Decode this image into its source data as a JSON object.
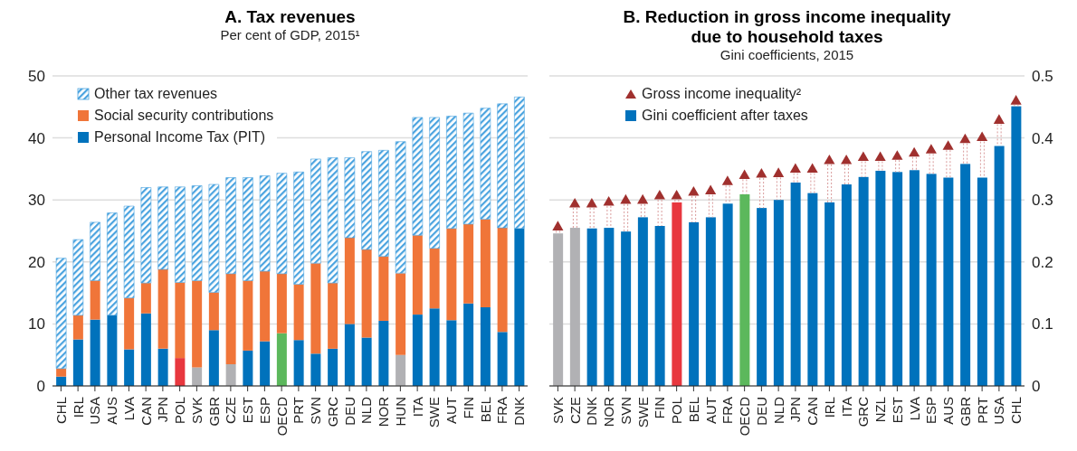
{
  "chart_data": [
    {
      "type": "bar",
      "title": "A. Tax revenues",
      "subtitle": "Per cent of GDP, 2015¹",
      "stacked": true,
      "grid": "y",
      "legend": "top left",
      "categories": [
        "CHL",
        "IRL",
        "USA",
        "AUS",
        "LVA",
        "CAN",
        "JPN",
        "POL",
        "SVK",
        "GBR",
        "CZE",
        "EST",
        "ESP",
        "OECD",
        "PRT",
        "SVN",
        "GRC",
        "DEU",
        "NLD",
        "NOR",
        "HUN",
        "ITA",
        "SWE",
        "AUT",
        "FIN",
        "BEL",
        "FRA",
        "DNK"
      ],
      "ylim": [
        0,
        50
      ],
      "yticks": [
        0,
        10,
        20,
        30,
        40,
        50
      ],
      "series": [
        {
          "name": "Personal Income Tax (PIT)",
          "color": "#0072bc",
          "values": [
            1.5,
            7.5,
            10.7,
            11.4,
            5.9,
            11.7,
            6.0,
            4.5,
            3.0,
            9.0,
            3.5,
            5.7,
            7.2,
            8.5,
            7.4,
            5.2,
            6.0,
            10.0,
            7.8,
            10.5,
            5.0,
            11.5,
            12.5,
            10.6,
            13.3,
            12.7,
            8.7,
            25.4
          ],
          "colors": [
            "#0072bc",
            "#0072bc",
            "#0072bc",
            "#0072bc",
            "#0072bc",
            "#0072bc",
            "#0072bc",
            "#e8373e",
            "#b1b1b4",
            "#0072bc",
            "#b1b1b4",
            "#0072bc",
            "#0072bc",
            "#5cb85c",
            "#0072bc",
            "#0072bc",
            "#0072bc",
            "#0072bc",
            "#0072bc",
            "#0072bc",
            "#b1b1b4",
            "#0072bc",
            "#0072bc",
            "#0072bc",
            "#0072bc",
            "#0072bc",
            "#0072bc",
            "#0072bc"
          ]
        },
        {
          "name": "Social security contributions",
          "color": "#f07539",
          "values": [
            1.3,
            3.9,
            6.3,
            0,
            8.3,
            4.9,
            12.8,
            12.2,
            14.0,
            6.1,
            14.6,
            11.3,
            11.3,
            9.6,
            9.0,
            14.6,
            10.6,
            13.9,
            14.2,
            10.4,
            13.2,
            12.8,
            9.7,
            14.8,
            12.8,
            14.2,
            16.8,
            0
          ]
        },
        {
          "name": "Other tax revenues",
          "color": "#4aa3df",
          "values": [
            17.8,
            12.2,
            9.4,
            16.5,
            14.8,
            15.4,
            13.3,
            15.4,
            15.3,
            17.4,
            15.5,
            16.6,
            15.4,
            16.2,
            18.1,
            16.8,
            20.2,
            12.9,
            15.8,
            17.1,
            21.2,
            19.0,
            21.1,
            18.1,
            17.9,
            17.9,
            20.0,
            21.2
          ]
        }
      ]
    },
    {
      "type": "bar",
      "title": "B. Reduction in gross income inequality due to household taxes",
      "subtitle": "Gini coefficients, 2015",
      "grid": "y",
      "legend": "top left",
      "marker": "triangle",
      "categories": [
        "SVK",
        "CZE",
        "DNK",
        "NOR",
        "SVN",
        "SWE",
        "FIN",
        "POL",
        "BEL",
        "AUT",
        "FRA",
        "OECD",
        "DEU",
        "NLD",
        "JPN",
        "CAN",
        "IRL",
        "ITA",
        "GRC",
        "NZL",
        "EST",
        "LVA",
        "ESP",
        "AUS",
        "GBR",
        "PRT",
        "USA",
        "CHL"
      ],
      "y2lim": [
        0,
        0.5
      ],
      "y2ticks": [
        0,
        0.1,
        0.2,
        0.3,
        0.4,
        0.5
      ],
      "series": [
        {
          "name": "Gross income inequality²",
          "type": "scatter",
          "axis": "y2",
          "color": "#a0302e",
          "values": [
            0.256,
            0.293,
            0.293,
            0.296,
            0.299,
            0.299,
            0.306,
            0.306,
            0.312,
            0.314,
            0.329,
            0.339,
            0.341,
            0.342,
            0.349,
            0.349,
            0.363,
            0.363,
            0.368,
            0.368,
            0.37,
            0.375,
            0.38,
            0.386,
            0.397,
            0.4,
            0.428,
            0.459
          ]
        },
        {
          "name": "Gini coefficient after taxes",
          "type": "bar",
          "axis": "y2",
          "color": "#0072bc",
          "values": [
            0.246,
            0.255,
            0.254,
            0.255,
            0.249,
            0.272,
            0.258,
            0.296,
            0.264,
            0.272,
            0.294,
            0.309,
            0.287,
            0.3,
            0.328,
            0.311,
            0.296,
            0.325,
            0.337,
            0.347,
            0.345,
            0.348,
            0.342,
            0.336,
            0.358,
            0.336,
            0.387,
            0.451
          ],
          "colors": [
            "#b1b1b4",
            "#b1b1b4",
            "#0072bc",
            "#0072bc",
            "#0072bc",
            "#0072bc",
            "#0072bc",
            "#e8373e",
            "#0072bc",
            "#0072bc",
            "#0072bc",
            "#5cb85c",
            "#0072bc",
            "#0072bc",
            "#0072bc",
            "#0072bc",
            "#0072bc",
            "#0072bc",
            "#0072bc",
            "#0072bc",
            "#0072bc",
            "#0072bc",
            "#0072bc",
            "#0072bc",
            "#0072bc",
            "#0072bc",
            "#0072bc",
            "#0072bc"
          ]
        }
      ]
    }
  ]
}
